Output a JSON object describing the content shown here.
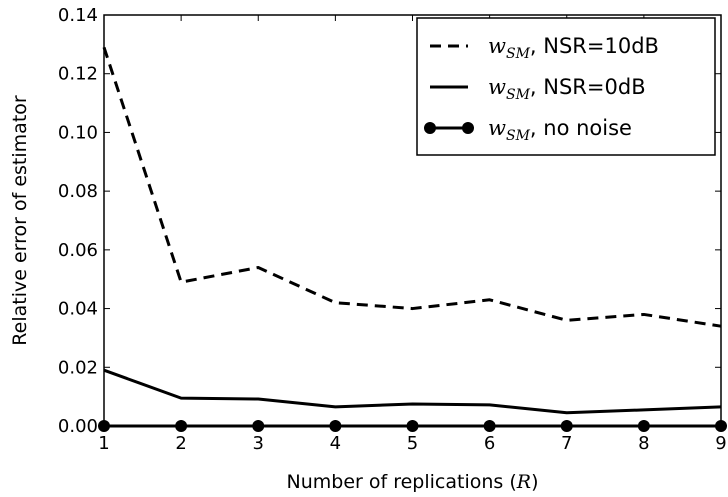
{
  "chart_data": {
    "type": "line",
    "xlabel": "Number of replications (",
    "xlabel_symbol": "R",
    "xlabel_suffix": ")",
    "ylabel": "Relative error of estimator",
    "xlim": [
      1,
      9
    ],
    "ylim": [
      0,
      0.14
    ],
    "x_ticks": [
      "1",
      "2",
      "3",
      "4",
      "5",
      "6",
      "7",
      "8",
      "9"
    ],
    "y_ticks": [
      "0.00",
      "0.02",
      "0.04",
      "0.06",
      "0.08",
      "0.10",
      "0.12",
      "0.14"
    ],
    "grid": false,
    "legend_position": "top-right",
    "x": [
      1,
      2,
      3,
      4,
      5,
      6,
      7,
      8,
      9
    ],
    "series": [
      {
        "symbol": "w",
        "subscript": "SM",
        "suffix": ", NSR=10dB",
        "style": "dashed",
        "values": [
          0.129,
          0.049,
          0.054,
          0.042,
          0.04,
          0.043,
          0.036,
          0.038,
          0.034
        ]
      },
      {
        "symbol": "w",
        "subscript": "SM",
        "suffix": ", NSR=0dB",
        "style": "solid",
        "values": [
          0.019,
          0.0095,
          0.0092,
          0.0065,
          0.0075,
          0.0072,
          0.0045,
          0.0055,
          0.0065
        ]
      },
      {
        "symbol": "w",
        "subscript": "SM",
        "suffix": ", no noise",
        "style": "solid-marker",
        "values": [
          0,
          0,
          0,
          0,
          0,
          0,
          0,
          0,
          0
        ]
      }
    ]
  }
}
